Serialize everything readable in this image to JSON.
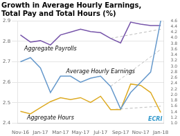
{
  "chart_data": {
    "type": "line",
    "title": [
      "Growth in Average Hourly Earnings,",
      "Total Pay and Total Hours (%)"
    ],
    "xlim": [
      -0.3,
      14.3
    ],
    "xticks": [
      {
        "value": 0,
        "label": "Nov-16"
      },
      {
        "value": 2,
        "label": "Jan-17"
      },
      {
        "value": 4,
        "label": "Mar-17"
      },
      {
        "value": 6,
        "label": "May-17"
      },
      {
        "value": 8,
        "label": "Jul-17"
      },
      {
        "value": 10,
        "label": "Sep-17"
      },
      {
        "value": 12,
        "label": "Nov-17"
      },
      {
        "value": 14,
        "label": "Jan-18"
      }
    ],
    "ylim": [
      2.4,
      2.9
    ],
    "yticks": [
      2.4,
      2.5,
      2.6,
      2.7,
      2.8,
      2.9
    ],
    "y2lim": [
      1.0,
      4.6
    ],
    "y2ticks": [
      {
        "value": 1.0,
        "label": "1.0"
      },
      1.2,
      1.4,
      1.6,
      1.8,
      {
        "value": 2.0,
        "label": "2.0"
      },
      2.2,
      2.4,
      2.6,
      2.8,
      {
        "value": 3.0,
        "label": "3.0"
      },
      3.2,
      3.4,
      3.6,
      3.8,
      {
        "value": 4.0,
        "label": "4.0"
      },
      4.2,
      4.4,
      4.6
    ],
    "grid": true,
    "series": [
      {
        "name": "Average Hourly Earnings",
        "color": "#6699cc",
        "x": [
          0,
          1,
          2,
          3,
          4,
          5,
          6,
          7,
          8,
          9,
          10,
          11,
          12,
          13,
          14
        ],
        "values": [
          2.7,
          2.72,
          2.67,
          2.55,
          2.63,
          2.63,
          2.6,
          2.62,
          2.63,
          2.58,
          2.47,
          2.55,
          2.6,
          2.65,
          2.9
        ]
      },
      {
        "color": "#bbbbbb",
        "line_style": "dashed",
        "x": [
          9,
          14
        ],
        "values": [
          2.58,
          2.76
        ]
      },
      {
        "name": "Aggregate Payrolls",
        "color": "#7755aa",
        "axis": "y2",
        "x": [
          0,
          1,
          2,
          3,
          4,
          5,
          6,
          7,
          8,
          9,
          10,
          11,
          12,
          13,
          14
        ],
        "values": [
          4.1,
          3.85,
          3.9,
          3.75,
          4.1,
          4.2,
          4.3,
          4.22,
          4.18,
          3.98,
          3.82,
          4.55,
          4.48,
          4.43,
          4.43
        ]
      },
      {
        "name": "Aggregate Hours",
        "color": "#ddaa22",
        "axis": "y2",
        "x": [
          0,
          1,
          2,
          3,
          4,
          5,
          6,
          7,
          8,
          9,
          10,
          11,
          12,
          13,
          14
        ],
        "values": [
          1.42,
          1.33,
          1.55,
          1.76,
          1.9,
          1.83,
          1.9,
          1.73,
          1.95,
          1.48,
          1.48,
          2.38,
          2.33,
          2.08,
          1.38
        ]
      },
      {
        "color": "#bbbbbb",
        "line_style": "dashed",
        "axis": "y2",
        "x": [
          9,
          14
        ],
        "values": [
          3.98,
          4.3
        ]
      },
      {
        "color": "#bbbbbb",
        "line_style": "dashed",
        "axis": "y2",
        "x": [
          9,
          14
        ],
        "values": [
          1.48,
          1.6
        ]
      }
    ],
    "annotations": [
      {
        "text": "ECRI",
        "color": "#3399cc"
      }
    ]
  }
}
